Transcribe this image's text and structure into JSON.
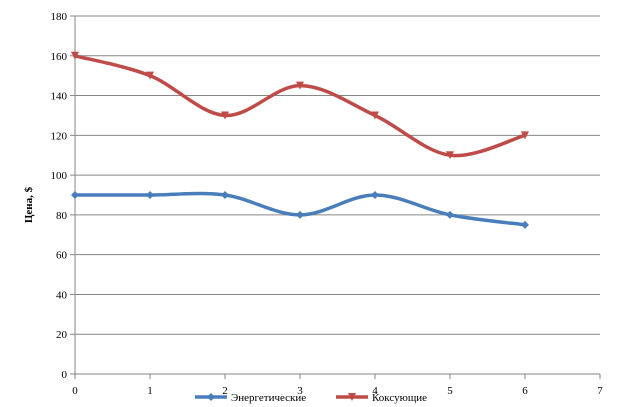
{
  "chart_data": {
    "type": "line",
    "title": "",
    "xlabel": "",
    "ylabel": "Цена, $",
    "xlim": [
      0,
      7
    ],
    "ylim": [
      0,
      180
    ],
    "x_ticks": [
      0,
      1,
      2,
      3,
      4,
      5,
      6,
      7
    ],
    "y_ticks": [
      0,
      20,
      40,
      60,
      80,
      100,
      120,
      140,
      160,
      180
    ],
    "grid": "horizontal",
    "smooth": true,
    "legend_position": "bottom",
    "series": [
      {
        "name": "Энергетические",
        "color": "#4a7ebb",
        "marker": "diamond",
        "x": [
          0,
          1,
          2,
          3,
          4,
          5,
          6
        ],
        "y": [
          90,
          90,
          90,
          80,
          90,
          80,
          75
        ]
      },
      {
        "name": "Коксующие",
        "color": "#be4b48",
        "marker": "triangle-down",
        "x": [
          0,
          1,
          2,
          3,
          4,
          5,
          6
        ],
        "y": [
          160,
          150,
          130,
          145,
          130,
          110,
          120
        ]
      }
    ]
  }
}
